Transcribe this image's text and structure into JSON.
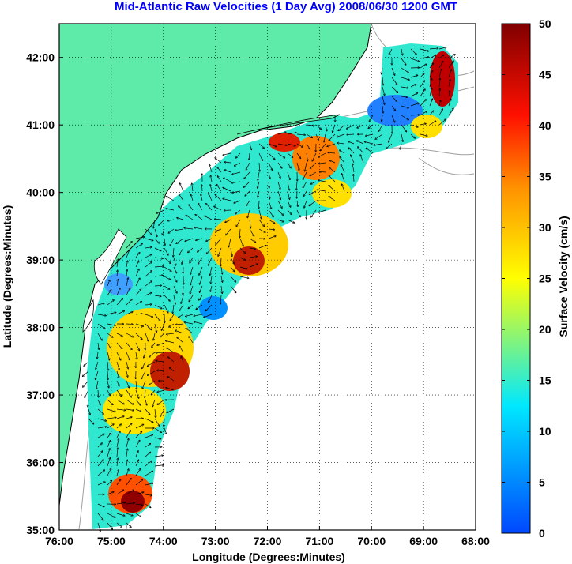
{
  "title": "Mid-Atlantic Raw Velocities (1 Day Avg) 2008/06/30 1200 GMT",
  "map": {
    "xlabel": "Longitude (Degrees:Minutes)",
    "ylabel": "Latitude (Degrees:Minutes)",
    "x_ticks": [
      "76:00",
      "75:00",
      "74:00",
      "73:00",
      "72:00",
      "71:00",
      "70:00",
      "69:00",
      "68:00"
    ],
    "y_ticks": [
      "42:00",
      "41:00",
      "40:00",
      "39:00",
      "38:00",
      "37:00",
      "36:00",
      "35:00"
    ],
    "lon_range": [
      -76,
      -68
    ],
    "lat_range": [
      35,
      42.5
    ],
    "grid": "dotted",
    "land_color": "#5eeaa8",
    "coast_color": "#000000",
    "bathymetry_color": "#a0a0a0"
  },
  "colorbar": {
    "label": "Surface Velocity (cm/s)",
    "ticks": [
      "50",
      "45",
      "40",
      "35",
      "30",
      "25",
      "20",
      "15",
      "10",
      "5",
      "0"
    ],
    "range": [
      0,
      50
    ],
    "colors": [
      "#0048ff",
      "#00ffff",
      "#ffff00",
      "#ff8000",
      "#ff0000",
      "#800000"
    ]
  }
}
